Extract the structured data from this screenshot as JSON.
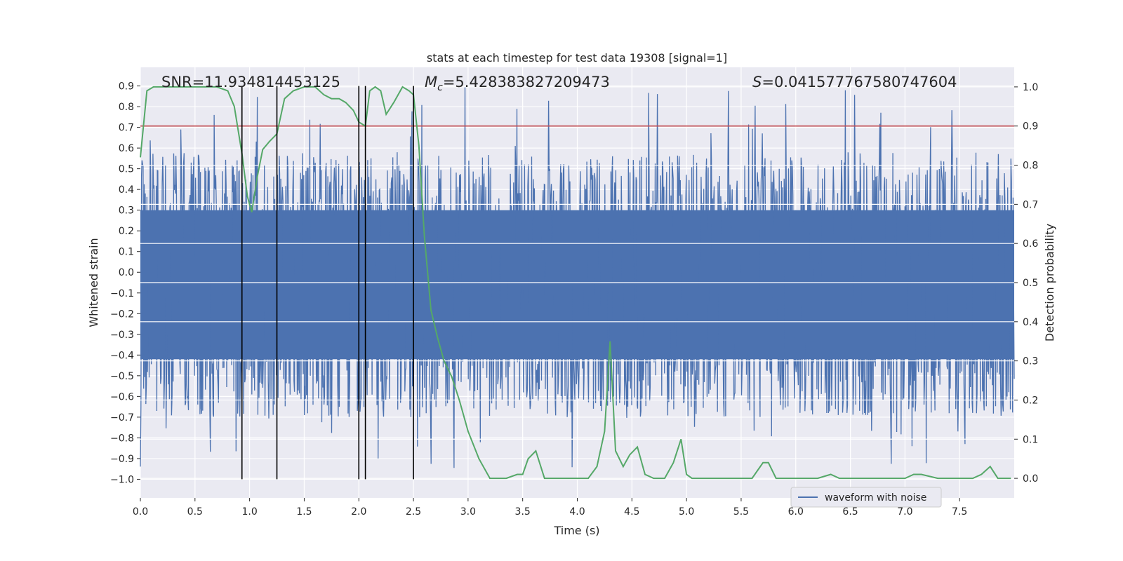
{
  "chart_data": {
    "type": "line",
    "title": "stats at each timestep for test data 19308 [signal=1]",
    "xlabel": "Time (s)",
    "ylabel": "Whitened strain",
    "ylabel_right": "Detection probability",
    "xlim": [
      0.0,
      8.0
    ],
    "ylim": [
      -1.09,
      0.99
    ],
    "ylim_right": [
      -0.05,
      1.05
    ],
    "x_ticks": [
      "0.0",
      "0.5",
      "1.0",
      "1.5",
      "2.0",
      "2.5",
      "3.0",
      "3.5",
      "4.0",
      "4.5",
      "5.0",
      "5.5",
      "6.0",
      "6.5",
      "7.0",
      "7.5"
    ],
    "x_tick_values": [
      0.0,
      0.5,
      1.0,
      1.5,
      2.0,
      2.5,
      3.0,
      3.5,
      4.0,
      4.5,
      5.0,
      5.5,
      6.0,
      6.5,
      7.0,
      7.5
    ],
    "y_ticks": [
      "0.9",
      "0.8",
      "0.7",
      "0.6",
      "0.5",
      "0.4",
      "0.3",
      "0.2",
      "0.1",
      "0.0",
      "−0.1",
      "−0.2",
      "−0.3",
      "−0.4",
      "−0.5",
      "−0.6",
      "−0.7",
      "−0.8",
      "−0.9",
      "−1.0"
    ],
    "y_tick_values": [
      0.9,
      0.8,
      0.7,
      0.6,
      0.5,
      0.4,
      0.3,
      0.2,
      0.1,
      0.0,
      -0.1,
      -0.2,
      -0.3,
      -0.4,
      -0.5,
      -0.6,
      -0.7,
      -0.8,
      -0.9,
      -1.0
    ],
    "y_ticks_right": [
      "1.0",
      "0.9",
      "0.8",
      "0.7",
      "0.6",
      "0.5",
      "0.4",
      "0.3",
      "0.2",
      "0.1",
      "0.0"
    ],
    "y_tick_values_right": [
      1.0,
      0.9,
      0.8,
      0.7,
      0.6,
      0.5,
      0.4,
      0.3,
      0.2,
      0.1,
      0.0
    ],
    "annotations": {
      "snr": "SNR=11.934814453125",
      "mc_symbol": "M",
      "mc_subscript": "c",
      "mc_value": "=5.428383827209473",
      "s_symbol": "S",
      "s_value": "=0.041577767580747604"
    },
    "legend": {
      "position": "lower-right",
      "entries": [
        "waveform with noise"
      ]
    },
    "threshold": {
      "axis": "right",
      "value": 0.9,
      "color": "#c44e52"
    },
    "vertical_lines_x": [
      0.93,
      1.25,
      2.0,
      2.06,
      2.5
    ],
    "vertical_lines_range": [
      -1.0,
      0.9
    ],
    "colors": {
      "waveform": "#4c72b0",
      "probability": "#55a868",
      "threshold": "#c44e52",
      "background": "#eaeaf2",
      "grid": "#ffffff",
      "vline": "#000000"
    },
    "series": [
      {
        "name": "Detection probability",
        "axis": "right",
        "x": [
          0.0,
          0.06,
          0.12,
          0.2,
          0.3,
          0.4,
          0.5,
          0.6,
          0.7,
          0.8,
          0.86,
          0.93,
          0.98,
          1.02,
          1.07,
          1.12,
          1.18,
          1.25,
          1.32,
          1.4,
          1.5,
          1.6,
          1.68,
          1.75,
          1.82,
          1.88,
          1.95,
          2.0,
          2.06,
          2.1,
          2.15,
          2.2,
          2.25,
          2.32,
          2.4,
          2.46,
          2.5,
          2.55,
          2.6,
          2.66,
          2.72,
          2.78,
          2.85,
          2.92,
          3.0,
          3.1,
          3.2,
          3.3,
          3.35,
          3.45,
          3.5,
          3.55,
          3.62,
          3.7,
          3.8,
          3.9,
          4.0,
          4.1,
          4.18,
          4.25,
          4.3,
          4.35,
          4.42,
          4.48,
          4.55,
          4.62,
          4.7,
          4.8,
          4.88,
          4.95,
          5.0,
          5.05,
          5.2,
          5.4,
          5.6,
          5.7,
          5.75,
          5.82,
          5.9,
          6.0,
          6.1,
          6.2,
          6.32,
          6.4,
          6.5,
          6.7,
          6.9,
          7.0,
          7.08,
          7.15,
          7.3,
          7.5,
          7.62,
          7.7,
          7.78,
          7.85,
          7.9,
          7.97
        ],
        "values": [
          0.82,
          0.99,
          1.0,
          1.0,
          1.0,
          1.0,
          1.0,
          1.0,
          1.0,
          0.99,
          0.95,
          0.83,
          0.72,
          0.68,
          0.77,
          0.84,
          0.86,
          0.88,
          0.97,
          0.99,
          1.0,
          1.0,
          0.98,
          0.97,
          0.97,
          0.96,
          0.94,
          0.91,
          0.9,
          0.99,
          1.0,
          0.99,
          0.93,
          0.96,
          1.0,
          0.99,
          0.98,
          0.85,
          0.62,
          0.43,
          0.36,
          0.3,
          0.26,
          0.2,
          0.12,
          0.05,
          0.0,
          0.0,
          0.0,
          0.01,
          0.01,
          0.05,
          0.07,
          0.0,
          0.0,
          0.0,
          0.0,
          0.0,
          0.03,
          0.12,
          0.35,
          0.07,
          0.03,
          0.06,
          0.08,
          0.01,
          0.0,
          0.0,
          0.04,
          0.1,
          0.01,
          0.0,
          0.0,
          0.0,
          0.0,
          0.04,
          0.04,
          0.0,
          0.0,
          0.0,
          0.0,
          0.0,
          0.01,
          0.0,
          0.0,
          0.0,
          0.0,
          0.0,
          0.01,
          0.01,
          0.0,
          0.0,
          0.0,
          0.01,
          0.03,
          0.0,
          0.0,
          0.0
        ]
      },
      {
        "name": "waveform with noise",
        "axis": "left",
        "sample_count": 1600,
        "envelope_upper": 0.3,
        "envelope_lower": -0.42,
        "max": 0.9,
        "min": -0.95
      }
    ]
  }
}
